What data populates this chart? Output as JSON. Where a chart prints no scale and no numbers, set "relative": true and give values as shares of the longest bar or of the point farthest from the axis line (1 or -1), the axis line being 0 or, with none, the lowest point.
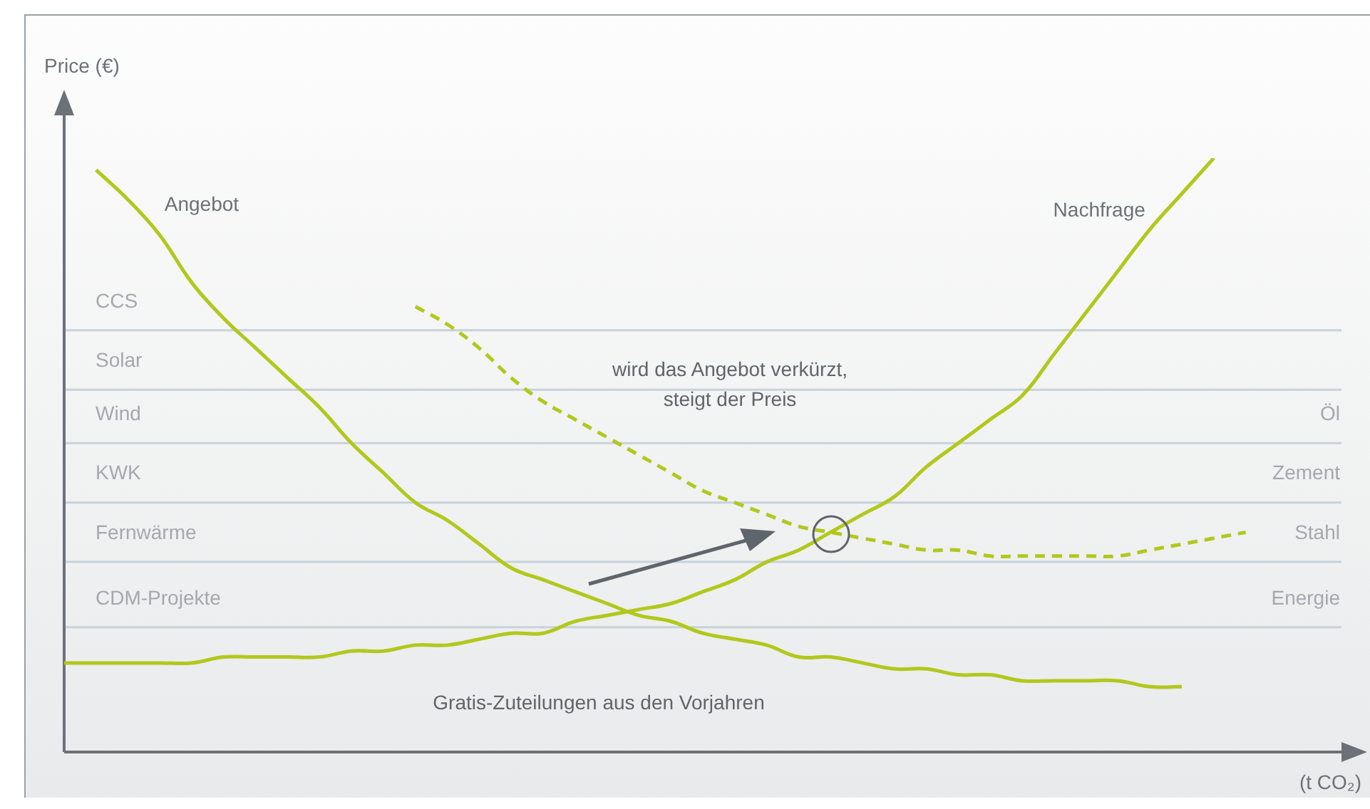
{
  "chart_data": {
    "type": "line",
    "relative": true,
    "ylabel": "Price (€)",
    "xlabel": "(t CO₂)",
    "categories": [
      null,
      null,
      null,
      null,
      null,
      null,
      null,
      null,
      null,
      null,
      null,
      null,
      null,
      null,
      null,
      null,
      null,
      null,
      null,
      null,
      null,
      null,
      null,
      null,
      null,
      null,
      null,
      null,
      null,
      null,
      null,
      null,
      null,
      null,
      null,
      null,
      null,
      null,
      null,
      null,
      null
    ],
    "series": [
      {
        "name": "Angebot",
        "color": "#b2c81c",
        "line_style": "solid",
        "values": [
          null,
          0.98,
          0.93,
          0.87,
          0.79,
          0.73,
          0.68,
          0.63,
          0.58,
          0.52,
          0.47,
          0.42,
          0.39,
          0.35,
          0.31,
          0.29,
          0.27,
          0.25,
          0.23,
          0.22,
          0.2,
          0.19,
          0.18,
          0.16,
          0.16,
          0.15,
          0.14,
          0.14,
          0.13,
          0.13,
          0.12,
          0.12,
          0.12,
          0.12,
          0.11,
          0.11,
          null,
          null,
          null,
          null,
          null
        ]
      },
      {
        "name": "Nachfrage",
        "color": "#b2c81c",
        "line_style": "solid",
        "values": [
          0.15,
          0.15,
          0.15,
          0.15,
          0.15,
          0.16,
          0.16,
          0.16,
          0.16,
          0.17,
          0.17,
          0.18,
          0.18,
          0.19,
          0.2,
          0.2,
          0.22,
          0.23,
          0.24,
          0.25,
          0.27,
          0.29,
          0.32,
          0.34,
          0.37,
          0.4,
          0.43,
          0.48,
          0.52,
          0.56,
          0.6,
          0.67,
          0.74,
          0.81,
          0.88,
          0.94,
          1.0,
          null,
          null,
          null,
          null
        ]
      },
      {
        "color": "#b2c81c",
        "line_style": "dashed",
        "values": [
          null,
          null,
          null,
          null,
          null,
          null,
          null,
          null,
          null,
          null,
          null,
          0.75,
          0.72,
          0.68,
          0.63,
          0.59,
          0.56,
          0.53,
          0.5,
          0.47,
          0.44,
          0.42,
          0.4,
          0.38,
          0.37,
          0.36,
          0.35,
          0.34,
          0.34,
          0.33,
          0.33,
          0.33,
          0.33,
          0.33,
          0.34,
          0.35,
          0.36,
          0.37,
          null,
          null,
          null
        ]
      }
    ],
    "ref_lines": [
      {
        "axis": "y",
        "value": 0.71,
        "label": "CCS",
        "color": "#c8d2da"
      },
      {
        "axis": "y",
        "value": 0.61,
        "label": "Solar",
        "color": "#c8d2da"
      },
      {
        "axis": "y",
        "value": 0.52,
        "label": "Wind",
        "color": "#c8d2da"
      },
      {
        "axis": "y",
        "value": 0.42,
        "label": "KWK",
        "color": "#c8d2da"
      },
      {
        "axis": "y",
        "value": 0.32,
        "label": "Fernwärme",
        "color": "#c8d2da"
      },
      {
        "axis": "y",
        "value": 0.21,
        "label": "CDM-Projekte",
        "color": "#c8d2da"
      }
    ],
    "annotations": [
      "wird das Angebot verkürzt,\nsteigt der Preis",
      "Gratis-Zuteilungen aus den Vorjahren",
      {
        "text": "Öl",
        "y": 0.52
      },
      {
        "text": "Zement",
        "y": 0.42
      },
      {
        "text": "Stahl",
        "y": 0.32
      },
      {
        "text": "Energie",
        "y": 0.21
      }
    ]
  }
}
